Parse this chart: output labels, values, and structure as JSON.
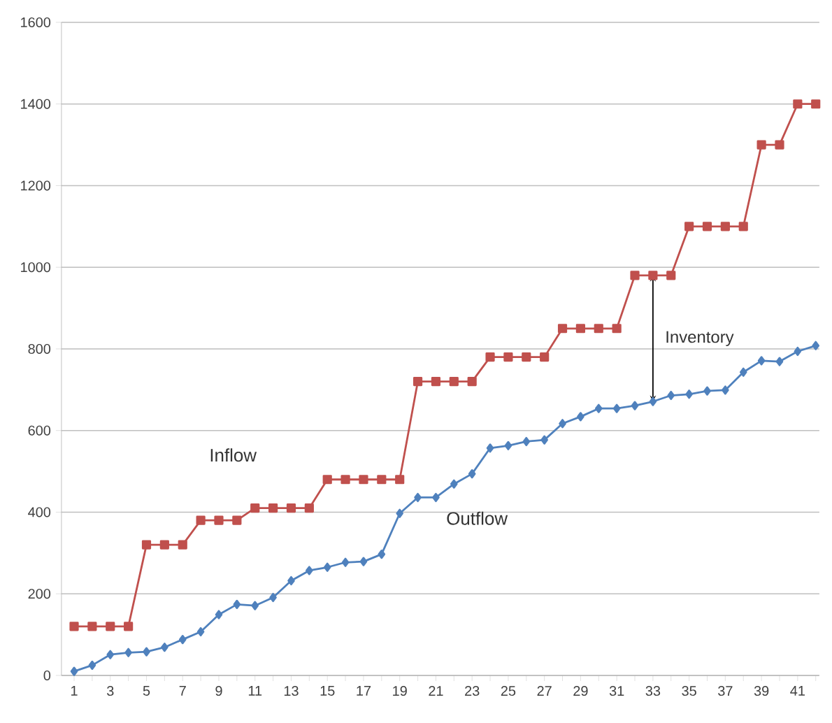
{
  "chart_data": {
    "type": "line",
    "categories": [
      "1",
      null,
      "3",
      null,
      "5",
      null,
      "7",
      null,
      "9",
      null,
      "11",
      null,
      "13",
      null,
      "15",
      null,
      "17",
      null,
      "19",
      null,
      "21",
      null,
      "23",
      null,
      "25",
      null,
      "27",
      null,
      "29",
      null,
      "31",
      null,
      "33",
      null,
      "35",
      null,
      "37",
      null,
      "39",
      null,
      "41",
      null
    ],
    "series": [
      {
        "name": "Inflow",
        "color": "#c0504d",
        "marker": "square",
        "values": [
          120,
          120,
          120,
          120,
          320,
          320,
          320,
          380,
          380,
          380,
          410,
          410,
          410,
          410,
          480,
          480,
          480,
          480,
          480,
          720,
          720,
          720,
          720,
          780,
          780,
          780,
          780,
          850,
          850,
          850,
          850,
          980,
          980,
          980,
          1100,
          1100,
          1100,
          1100,
          1300,
          1300,
          1400,
          1400
        ]
      },
      {
        "name": "Outflow",
        "color": "#4f81bd",
        "marker": "diamond",
        "values": [
          10,
          25,
          51,
          56,
          58,
          69,
          88,
          107,
          149,
          174,
          171,
          191,
          232,
          257,
          265,
          277,
          279,
          297,
          397,
          436,
          436,
          469,
          494,
          557,
          563,
          573,
          577,
          617,
          634,
          654,
          654,
          661,
          671,
          686,
          689,
          697,
          699,
          743,
          771,
          769,
          794,
          808
        ]
      }
    ],
    "ylim": [
      0,
      1600
    ],
    "yticks": [
      0,
      200,
      400,
      600,
      800,
      1000,
      1200,
      1400,
      1600
    ],
    "grid": "y",
    "legend": false,
    "annotations": [
      "Inventory"
    ]
  }
}
